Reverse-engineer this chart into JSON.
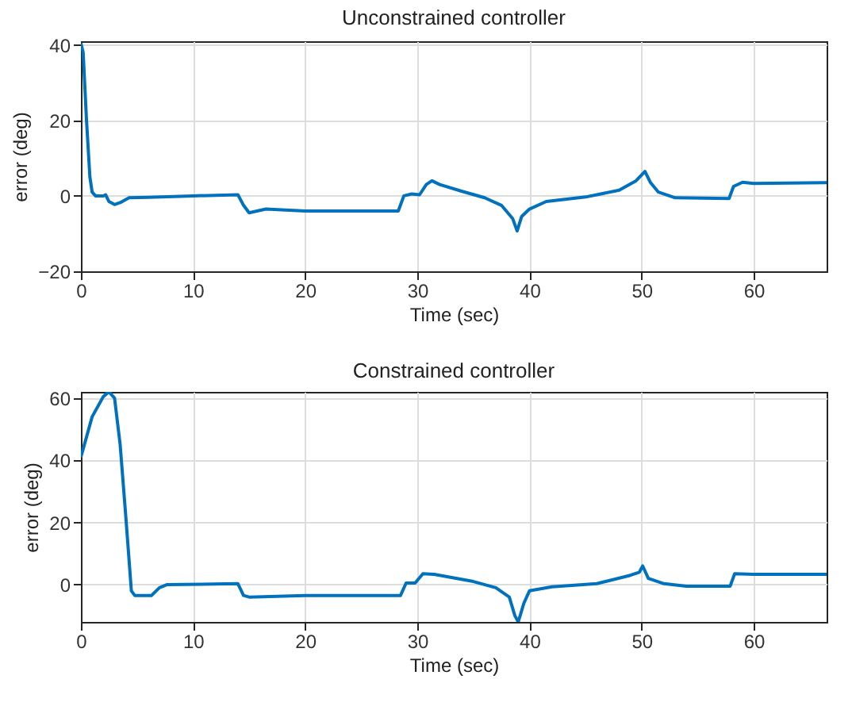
{
  "chart_data": [
    {
      "type": "line",
      "title": "Unconstrained controller",
      "xlabel": "Time (sec)",
      "ylabel": "error (deg)",
      "xlim": [
        0,
        66.5
      ],
      "xticks": [
        0,
        10,
        20,
        30,
        40,
        50,
        60
      ],
      "ylim": [
        -20,
        41
      ],
      "yticks": [
        -20,
        0,
        20,
        40
      ],
      "grid": true,
      "series": [
        {
          "color": "#0072bd",
          "x": [
            0,
            0.2,
            0.5,
            0.8,
            1,
            1.3,
            2,
            2.2,
            2.5,
            3,
            3.5,
            4.3,
            6,
            10,
            14,
            14.5,
            15,
            16.5,
            20,
            25,
            28.3,
            28.8,
            29.5,
            30.2,
            30.8,
            31.3,
            32,
            34,
            36,
            37.5,
            38.5,
            38.9,
            39.3,
            40,
            41.5,
            45,
            48,
            49.5,
            50.3,
            50.8,
            51.5,
            53,
            57.8,
            58.2,
            59,
            60,
            66.5
          ],
          "values": [
            40.5,
            38,
            20,
            5,
            1,
            0,
            0,
            0.3,
            -1.5,
            -2.3,
            -1.8,
            -0.5,
            -0.4,
            0,
            0.3,
            -2.5,
            -4.5,
            -3.5,
            -4,
            -4,
            -4,
            0,
            0.5,
            0.3,
            3,
            4,
            3,
            1.2,
            -0.5,
            -2.5,
            -6,
            -9.3,
            -5.5,
            -3.5,
            -1.5,
            -0.3,
            1.5,
            4,
            6.5,
            3.5,
            1,
            -0.5,
            -0.7,
            2.5,
            3.6,
            3.3,
            3.5
          ]
        }
      ]
    },
    {
      "type": "line",
      "title": "Constrained controller",
      "xlabel": "Time (sec)",
      "ylabel": "error (deg)",
      "xlim": [
        0,
        66.5
      ],
      "xticks": [
        0,
        10,
        20,
        30,
        40,
        50,
        60
      ],
      "ylim": [
        -12,
        62
      ],
      "yticks": [
        0,
        20,
        40,
        60
      ],
      "grid": true,
      "series": [
        {
          "color": "#0072bd",
          "x": [
            0,
            1,
            2,
            2.5,
            3,
            3.5,
            4,
            4.5,
            4.8,
            6.3,
            7,
            7.7,
            14,
            14.5,
            15,
            20,
            28.5,
            29,
            29.8,
            30.5,
            31.5,
            35,
            37,
            38.2,
            38.7,
            39,
            39.5,
            40,
            42,
            46,
            49,
            49.8,
            50.1,
            50.6,
            52,
            54,
            57.9,
            58.3,
            60,
            66.5
          ],
          "values": [
            41,
            54,
            60.5,
            62,
            60,
            45,
            22,
            -2,
            -3.5,
            -3.5,
            -1,
            0,
            0.3,
            -3.5,
            -4,
            -3.5,
            -3.5,
            0.5,
            0.5,
            3.5,
            3.3,
            1,
            -1,
            -4,
            -10,
            -12,
            -6,
            -2,
            -0.7,
            0.3,
            3,
            4,
            6,
            2,
            0.3,
            -0.5,
            -0.5,
            3.5,
            3.3,
            3.3
          ]
        }
      ]
    }
  ]
}
